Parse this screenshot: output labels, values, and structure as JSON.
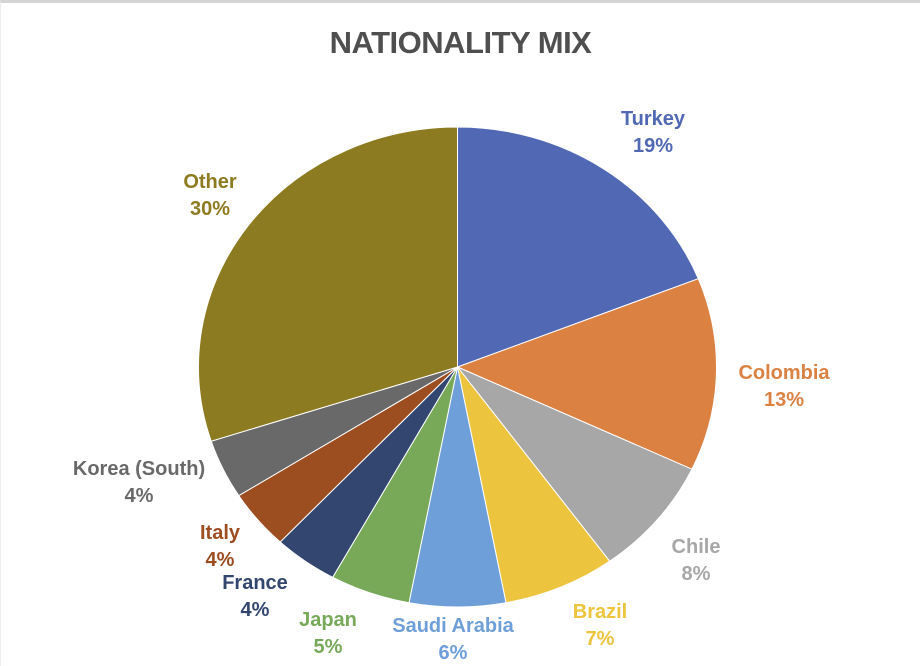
{
  "chart_data": {
    "type": "pie",
    "title": "NATIONALITY MIX",
    "title_color": "#4F4F4F",
    "background": "#FFFFFF",
    "legend_position": "none",
    "data_labels": "category name + percent, outside end, colored to match slice",
    "start_angle_deg": 0,
    "direction": "clockwise",
    "slices": [
      {
        "name": "Turkey",
        "percent": 19,
        "percent_text": "19%",
        "color": "#5169B4"
      },
      {
        "name": "Colombia",
        "percent": 13,
        "percent_text": "13%",
        "color": "#DB8243"
      },
      {
        "name": "Chile",
        "percent": 8,
        "percent_text": "8%",
        "color": "#A7A7A7"
      },
      {
        "name": "Brazil",
        "percent": 7,
        "percent_text": "7%",
        "color": "#EDC43D"
      },
      {
        "name": "Saudi Arabia",
        "percent": 6,
        "percent_text": "6%",
        "color": "#6E9FD8"
      },
      {
        "name": "Japan",
        "percent": 5,
        "percent_text": "5%",
        "color": "#77A958"
      },
      {
        "name": "France",
        "percent": 4,
        "percent_text": "4%",
        "color": "#32466F"
      },
      {
        "name": "Italy",
        "percent": 4,
        "percent_text": "4%",
        "color": "#9D4E21"
      },
      {
        "name": "Korea (South)",
        "percent": 4,
        "percent_text": "4%",
        "color": "#696969"
      },
      {
        "name": "Other",
        "percent": 30,
        "percent_text": "30%",
        "color": "#8D7B22"
      }
    ]
  }
}
